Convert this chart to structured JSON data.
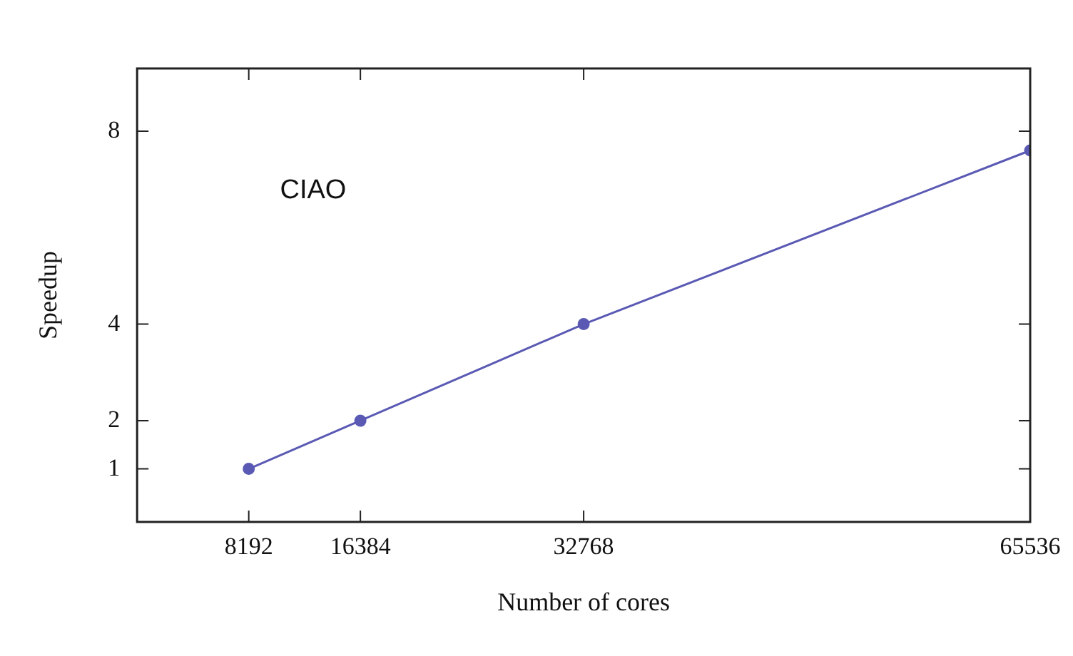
{
  "chart_data": {
    "type": "line",
    "xlabel": "Number of cores",
    "ylabel": "Speedup",
    "annotations": [
      "CIAO"
    ],
    "x": [
      8192,
      16384,
      32768,
      65536
    ],
    "series": [
      {
        "color": "#5a5ab4",
        "values": [
          1,
          2,
          4,
          7.6
        ]
      }
    ],
    "xlim": [
      0,
      65536
    ],
    "xticks": [
      8192,
      16384,
      32768,
      65536
    ],
    "ylim": [
      -0.1,
      9.3
    ],
    "yticks": [
      1,
      2,
      4,
      8
    ],
    "grid": false,
    "legend": false,
    "marker": "circle",
    "line_style": "solid"
  }
}
